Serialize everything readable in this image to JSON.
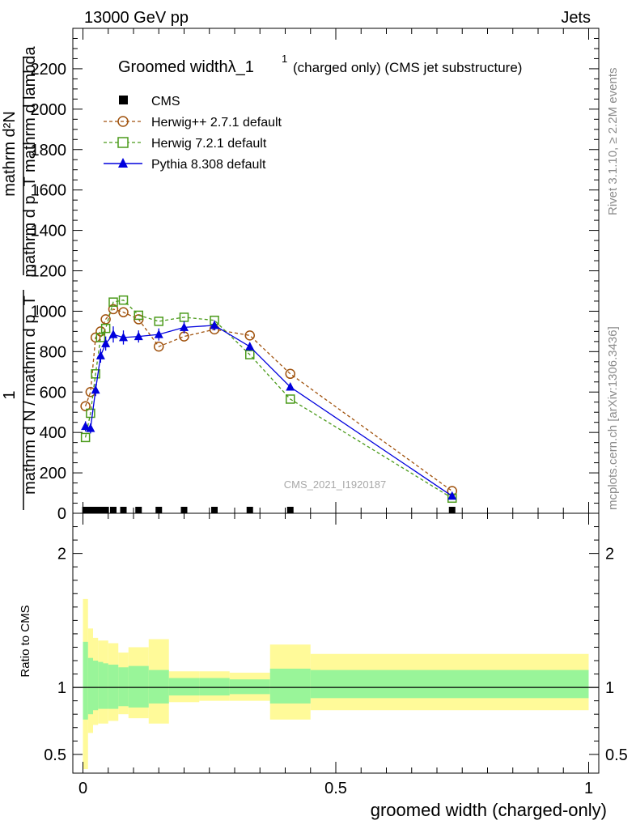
{
  "header": {
    "energy": "13000 GeV pp",
    "category": "Jets"
  },
  "side_text": {
    "rivet": "Rivet 3.1.10, ≥ 2.2M events",
    "mcplots": "mcplots.cern.ch [arXiv:1306.3436]"
  },
  "chart_data": {
    "type": "line",
    "title_main": "Groomed widthλ_1",
    "title_sup": "1",
    "title_tail": "(charged only) (CMS jet substructure)",
    "analysis_id": "CMS_2021_I1920187",
    "xlabel": "groomed width (charged-only)",
    "ylabel_numerator": "1",
    "ylabel_denominator": "mathrm d N / mathrm d p_T",
    "ylabel_numerator_right": "mathrm d²N",
    "ylabel_denominator_right": "mathrm d p_T mathrm d lambda",
    "ratio_ylabel": "Ratio to CMS",
    "xlim": [
      -0.02,
      1.02
    ],
    "ylim": [
      0,
      2400
    ],
    "ratio_ylim": [
      0.36,
      2.3
    ],
    "x_ticks": [
      "0",
      "0.5",
      "1"
    ],
    "y_ticks": [
      "0",
      "200",
      "400",
      "600",
      "800",
      "1000",
      "1200",
      "1400",
      "1600",
      "1800",
      "2000",
      "2200"
    ],
    "ratio_ticks": [
      "0.5",
      "1",
      "2"
    ],
    "legend": [
      "CMS",
      "Herwig++ 2.7.1 default",
      "Herwig 7.2.1 default",
      "Pythia 8.308 default"
    ],
    "series": [
      {
        "name": "CMS",
        "color": "#000000",
        "marker": "square",
        "x": [
          0.005,
          0.015,
          0.025,
          0.035,
          0.045,
          0.06,
          0.08,
          0.11,
          0.15,
          0.2,
          0.26,
          0.33,
          0.41,
          0.73
        ],
        "y": [
          0,
          0,
          0,
          0,
          0,
          0,
          0,
          0,
          0,
          0,
          0,
          0,
          0,
          0
        ]
      },
      {
        "name": "Herwig++ 2.7.1 default",
        "color": "#a0520d",
        "marker": "circle",
        "x": [
          0.005,
          0.015,
          0.025,
          0.035,
          0.045,
          0.06,
          0.08,
          0.11,
          0.15,
          0.2,
          0.26,
          0.33,
          0.41,
          0.73
        ],
        "y": [
          530,
          600,
          870,
          900,
          960,
          1010,
          995,
          960,
          825,
          875,
          910,
          880,
          690,
          110
        ]
      },
      {
        "name": "Herwig 7.2.1 default",
        "color": "#4a9a1a",
        "marker": "square-open",
        "x": [
          0.005,
          0.015,
          0.025,
          0.035,
          0.045,
          0.06,
          0.08,
          0.11,
          0.15,
          0.2,
          0.26,
          0.33,
          0.41,
          0.73
        ],
        "y": [
          375,
          495,
          690,
          870,
          915,
          1045,
          1055,
          980,
          950,
          970,
          955,
          785,
          565,
          75
        ]
      },
      {
        "name": "Pythia 8.308 default",
        "color": "#0000dd",
        "marker": "triangle",
        "x": [
          0.005,
          0.015,
          0.025,
          0.035,
          0.045,
          0.06,
          0.08,
          0.11,
          0.15,
          0.2,
          0.26,
          0.33,
          0.41,
          0.73
        ],
        "y": [
          430,
          420,
          610,
          780,
          840,
          885,
          870,
          875,
          885,
          920,
          930,
          825,
          625,
          85
        ],
        "err": [
          25,
          25,
          30,
          35,
          35,
          40,
          35,
          30,
          30,
          30,
          25,
          20,
          15,
          8
        ]
      }
    ],
    "ratio_bands": {
      "edges": [
        0.0,
        0.01,
        0.02,
        0.03,
        0.04,
        0.05,
        0.07,
        0.09,
        0.13,
        0.17,
        0.23,
        0.29,
        0.37,
        0.45,
        1.0
      ],
      "inner_lo": [
        0.76,
        0.8,
        0.83,
        0.84,
        0.84,
        0.84,
        0.86,
        0.85,
        0.88,
        0.94,
        0.94,
        0.95,
        0.88,
        0.92
      ],
      "inner_hi": [
        1.34,
        1.22,
        1.2,
        1.19,
        1.18,
        1.17,
        1.15,
        1.16,
        1.13,
        1.07,
        1.07,
        1.06,
        1.14,
        1.13
      ],
      "outer_lo": [
        0.39,
        0.66,
        0.72,
        0.73,
        0.73,
        0.75,
        0.8,
        0.77,
        0.73,
        0.89,
        0.9,
        0.9,
        0.76,
        0.83
      ],
      "outer_hi": [
        1.66,
        1.44,
        1.37,
        1.35,
        1.35,
        1.33,
        1.26,
        1.3,
        1.36,
        1.12,
        1.12,
        1.11,
        1.32,
        1.25
      ]
    }
  },
  "colors": {
    "inner_band": "#99f599",
    "outer_band": "#fffa99"
  }
}
